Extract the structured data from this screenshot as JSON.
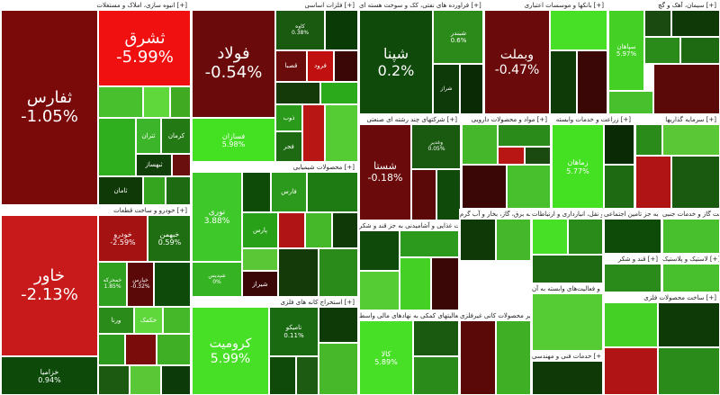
{
  "sectors": [
    {
      "title": "انبوه سازی، املاک و مستغلات [+]",
      "tiles": [
        {
          "label": "ثفارس",
          "change": "-1.05%"
        },
        {
          "label": "ثشرق",
          "change": "-5.99%"
        },
        {
          "label": "ثتران"
        },
        {
          "label": "کرمان"
        },
        {
          "label": "ثبهساز"
        },
        {
          "label": "ثامان"
        }
      ]
    },
    {
      "title": "خودرو و ساخت قطعات [+]",
      "tiles": [
        {
          "label": "خاور",
          "change": "-2.13%"
        },
        {
          "label": "خزامیا",
          "change": "0.94%"
        },
        {
          "label": "خودرو",
          "change": "-2.59%"
        },
        {
          "label": "خبهمن",
          "change": "0.59%"
        },
        {
          "label": "خمحرکه",
          "change": "1.85%"
        },
        {
          "label": "خپارس",
          "change": "-0.32%"
        },
        {
          "label": "ورنا"
        },
        {
          "label": "خکمک"
        }
      ]
    },
    {
      "title": "فلزات اساسی [+]",
      "tiles": [
        {
          "label": "فولاد",
          "change": "-0.54%"
        },
        {
          "label": "فسازان",
          "change": "5.98%"
        },
        {
          "label": "کاوه",
          "change": "0.38%"
        },
        {
          "label": "قصبا"
        },
        {
          "label": "فرود"
        },
        {
          "label": "ذوب"
        },
        {
          "label": "فجر"
        }
      ]
    },
    {
      "title": "محصولات شیمیایی [+]",
      "tiles": [
        {
          "label": "نوری",
          "change": "3.88%"
        },
        {
          "label": "شپدیس",
          "change": "0%"
        },
        {
          "label": "فارس"
        },
        {
          "label": "پارس"
        },
        {
          "label": "شیراز"
        }
      ]
    },
    {
      "title": "استخراج کانه های فلزی [+]",
      "tiles": [
        {
          "label": "کرومیت",
          "change": "5.99%"
        },
        {
          "label": "تامیکو",
          "change": "0.11%"
        }
      ]
    },
    {
      "title": "فراورده های نفتی، کک و سوخت هسته ای [+]",
      "tiles": [
        {
          "label": "شپنا",
          "change": "0.2%"
        },
        {
          "label": "شبندر",
          "change": "0.6%"
        },
        {
          "label": "شراز"
        }
      ]
    },
    {
      "title": "بانکها و موسسات اعتباری [+]",
      "tiles": [
        {
          "label": "وبملت",
          "change": "-0.47%"
        }
      ]
    },
    {
      "title": "سیمان، آهک و گچ [+]",
      "tiles": [
        {
          "label": "سپاهان",
          "change": "5.97%"
        }
      ]
    },
    {
      "title": "شرکتهای چند رشته ای صنعتی [+]",
      "tiles": [
        {
          "label": "شستا",
          "change": "-0.18%"
        },
        {
          "label": "وغدیر",
          "change": "0.05%"
        }
      ]
    },
    {
      "title": "مواد و محصولات دارویی [+]",
      "tiles": []
    },
    {
      "title": "زراعت و خدمات وابسته [+]",
      "tiles": [
        {
          "label": "زماهان",
          "change": "5.77%"
        }
      ]
    },
    {
      "title": "سرمایه گذاریها [+]",
      "tiles": []
    },
    {
      "title": "محصولات غذایی و آشامیدنی به جز قند و شکر [+]",
      "tiles": []
    },
    {
      "title": "عرضه برق، گاز، بخار و آب گرم [+]",
      "tiles": []
    },
    {
      "title": "حمل و نقل، انبارداری و ارتباطات [+]",
      "tiles": []
    },
    {
      "title": "بیمه وصندوق بازنشستگی به جز تامین اجتماعی [+]",
      "tiles": []
    },
    {
      "title": "استخراج نفت گاز و خدمات جنبی [+]",
      "tiles": []
    },
    {
      "title": "فعالیتهای کمکی به نهادهای مالی واسط [+]",
      "tiles": [
        {
          "label": "کالا",
          "change": "5.89%"
        }
      ]
    },
    {
      "title": "سایر محصولات کانی غیرفلزی [+]",
      "tiles": []
    },
    {
      "title": "رایانه و فعالیت‌های وابسته به آن [+]",
      "tiles": []
    },
    {
      "title": "خدمات فنی و مهندسی [+]",
      "tiles": []
    },
    {
      "title": "قند و شکر [+]",
      "tiles": []
    },
    {
      "title": "لاستیک و پلاستیک [+]",
      "tiles": []
    },
    {
      "title": "ساخت محصولات فلزی [+]",
      "tiles": []
    }
  ]
}
